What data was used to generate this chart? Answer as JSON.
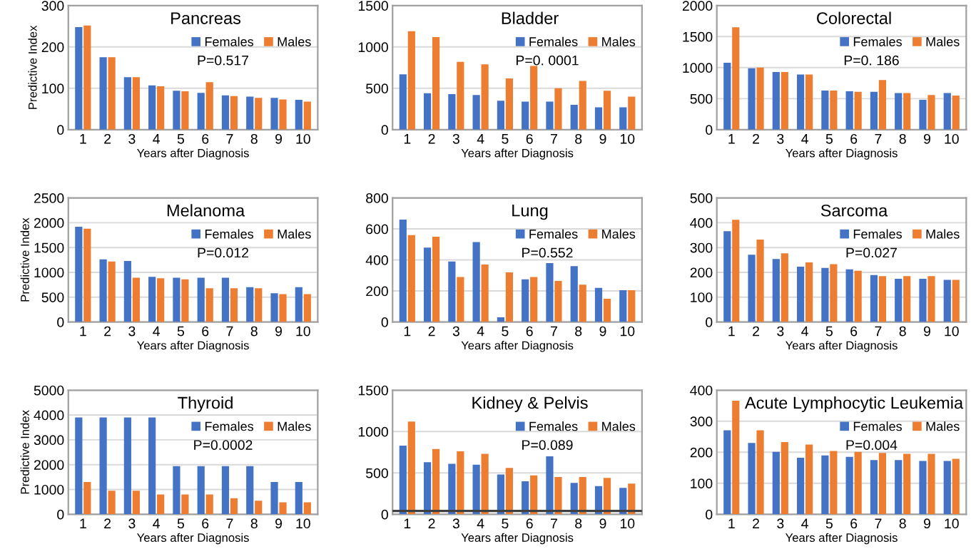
{
  "chart_data": [
    {
      "type": "bar",
      "title": "Pancreas",
      "xlabel": "Years after Diagnosis",
      "ylabel": "Predictive Index",
      "categories": [
        "1",
        "2",
        "3",
        "4",
        "5",
        "6",
        "7",
        "8",
        "9",
        "10"
      ],
      "ylim": [
        0,
        300
      ],
      "yticks": [
        0,
        100,
        200,
        300
      ],
      "grid": "y",
      "legend": "top right",
      "annotations": [
        "P=0.517"
      ],
      "series": [
        {
          "name": "Females",
          "color": "#4472c4",
          "values": [
            248,
            175,
            127,
            107,
            94,
            89,
            83,
            80,
            77,
            72
          ]
        },
        {
          "name": "Males",
          "color": "#ed7d31",
          "values": [
            252,
            175,
            127,
            105,
            93,
            115,
            81,
            77,
            73,
            68
          ]
        }
      ]
    },
    {
      "type": "bar",
      "title": "Bladder",
      "xlabel": "Years after Diagnosis",
      "categories": [
        "1",
        "2",
        "3",
        "4",
        "5",
        "6",
        "7",
        "8",
        "9",
        "10"
      ],
      "ylim": [
        0,
        1500
      ],
      "yticks": [
        0,
        500,
        1000,
        1500
      ],
      "grid": "y",
      "legend": "top right",
      "annotations": [
        "P=0. 0001"
      ],
      "series": [
        {
          "name": "Females",
          "color": "#4472c4",
          "values": [
            670,
            440,
            430,
            420,
            350,
            340,
            340,
            300,
            270,
            270
          ]
        },
        {
          "name": "Males",
          "color": "#ed7d31",
          "values": [
            1190,
            1120,
            820,
            790,
            620,
            770,
            500,
            590,
            470,
            400
          ]
        }
      ]
    },
    {
      "type": "bar",
      "title": "Colorectal",
      "xlabel": "Years after Diagnosis",
      "categories": [
        "1",
        "2",
        "3",
        "4",
        "5",
        "6",
        "7",
        "8",
        "9",
        "10"
      ],
      "ylim": [
        0,
        2000
      ],
      "yticks": [
        0,
        500,
        1000,
        1500,
        2000
      ],
      "grid": "y",
      "legend": "top right",
      "annotations": [
        "P=0. 186"
      ],
      "series": [
        {
          "name": "Females",
          "color": "#4472c4",
          "values": [
            1080,
            990,
            930,
            890,
            630,
            620,
            610,
            590,
            480,
            590
          ]
        },
        {
          "name": "Males",
          "color": "#ed7d31",
          "values": [
            1650,
            1000,
            930,
            890,
            630,
            610,
            800,
            590,
            560,
            550
          ]
        }
      ]
    },
    {
      "type": "bar",
      "title": "Melanoma",
      "xlabel": "Years after Diagnosis",
      "ylabel": "Predictive Index",
      "categories": [
        "1",
        "2",
        "3",
        "4",
        "5",
        "6",
        "7",
        "8",
        "9",
        "10"
      ],
      "ylim": [
        0,
        2500
      ],
      "yticks": [
        0,
        500,
        1000,
        1500,
        2000,
        2500
      ],
      "grid": "y",
      "legend": "top right",
      "annotations": [
        "P=0.012"
      ],
      "series": [
        {
          "name": "Females",
          "color": "#4472c4",
          "values": [
            1920,
            1260,
            1230,
            910,
            890,
            890,
            890,
            700,
            580,
            700
          ]
        },
        {
          "name": "Males",
          "color": "#ed7d31",
          "values": [
            1880,
            1220,
            890,
            880,
            860,
            680,
            680,
            680,
            560,
            560
          ]
        }
      ]
    },
    {
      "type": "bar",
      "title": "Lung",
      "xlabel": "Years after Diagnosis",
      "categories": [
        "1",
        "2",
        "3",
        "4",
        "5",
        "6",
        "7",
        "8",
        "9",
        "10"
      ],
      "ylim": [
        0,
        800
      ],
      "yticks": [
        0,
        200,
        400,
        600,
        800
      ],
      "grid": "y",
      "legend": "top right",
      "annotations": [
        "P=0.552"
      ],
      "series": [
        {
          "name": "Females",
          "color": "#4472c4",
          "values": [
            660,
            480,
            390,
            515,
            30,
            275,
            380,
            360,
            220,
            205
          ]
        },
        {
          "name": "Males",
          "color": "#ed7d31",
          "values": [
            560,
            550,
            290,
            370,
            320,
            290,
            265,
            240,
            150,
            205
          ]
        }
      ]
    },
    {
      "type": "bar",
      "title": "Sarcoma",
      "xlabel": "Years after Diagnosis",
      "categories": [
        "1",
        "2",
        "3",
        "4",
        "5",
        "6",
        "7",
        "8",
        "9",
        "10"
      ],
      "ylim": [
        0,
        500
      ],
      "yticks": [
        0,
        100,
        200,
        300,
        400,
        500
      ],
      "grid": "y",
      "legend": "top right",
      "annotations": [
        "P=0.027"
      ],
      "series": [
        {
          "name": "Females",
          "color": "#4472c4",
          "values": [
            366,
            271,
            254,
            223,
            218,
            212,
            189,
            174,
            174,
            170
          ]
        },
        {
          "name": "Males",
          "color": "#ed7d31",
          "values": [
            412,
            332,
            277,
            240,
            233,
            206,
            185,
            185,
            185,
            170
          ]
        }
      ]
    },
    {
      "type": "bar",
      "title": "Thyroid",
      "xlabel": "Years after Diagnosis",
      "ylabel": "Predictive Index",
      "categories": [
        "1",
        "2",
        "3",
        "4",
        "5",
        "6",
        "7",
        "8",
        "9",
        "10"
      ],
      "ylim": [
        0,
        5000
      ],
      "yticks": [
        0,
        1000,
        2000,
        3000,
        4000,
        5000
      ],
      "grid": "y",
      "legend": "top right",
      "annotations": [
        "P=0.0002"
      ],
      "series": [
        {
          "name": "Females",
          "color": "#4472c4",
          "values": [
            3900,
            3900,
            3900,
            3900,
            1940,
            1940,
            1940,
            1940,
            1300,
            1300
          ]
        },
        {
          "name": "Males",
          "color": "#ed7d31",
          "values": [
            1300,
            950,
            950,
            800,
            800,
            800,
            650,
            550,
            480,
            480
          ]
        }
      ]
    },
    {
      "type": "bar",
      "title": "Kidney & Pelvis",
      "xlabel": "Years after Diagnosis",
      "categories": [
        "1",
        "2",
        "3",
        "4",
        "5",
        "6",
        "7",
        "8",
        "9",
        "10"
      ],
      "ylim": [
        0,
        1500
      ],
      "yticks": [
        0,
        500,
        1000,
        1500
      ],
      "grid": "y",
      "legend": "top right",
      "annotations": [
        "P=0.089"
      ],
      "ref_lines": [
        {
          "axis": "y",
          "value": 40,
          "label": null,
          "color": "#404040"
        }
      ],
      "series": [
        {
          "name": "Females",
          "color": "#4472c4",
          "values": [
            830,
            630,
            610,
            600,
            480,
            400,
            700,
            380,
            340,
            320
          ]
        },
        {
          "name": "Males",
          "color": "#ed7d31",
          "values": [
            1120,
            790,
            760,
            730,
            560,
            470,
            450,
            450,
            440,
            370
          ]
        }
      ]
    },
    {
      "type": "bar",
      "title": "Acute Lymphocytic Leukemia",
      "xlabel": "Years after Diagnosis",
      "categories": [
        "1",
        "2",
        "3",
        "4",
        "5",
        "6",
        "7",
        "8",
        "9",
        "10"
      ],
      "ylim": [
        0,
        400
      ],
      "yticks": [
        0,
        100,
        200,
        300,
        400
      ],
      "grid": "y",
      "legend": "top right",
      "annotations": [
        "P=0.004"
      ],
      "series": [
        {
          "name": "Females",
          "color": "#4472c4",
          "values": [
            271,
            230,
            201,
            182,
            190,
            185,
            175,
            175,
            172,
            172
          ]
        },
        {
          "name": "Males",
          "color": "#ed7d31",
          "values": [
            366,
            271,
            233,
            225,
            204,
            201,
            198,
            195,
            195,
            179
          ]
        }
      ]
    }
  ]
}
